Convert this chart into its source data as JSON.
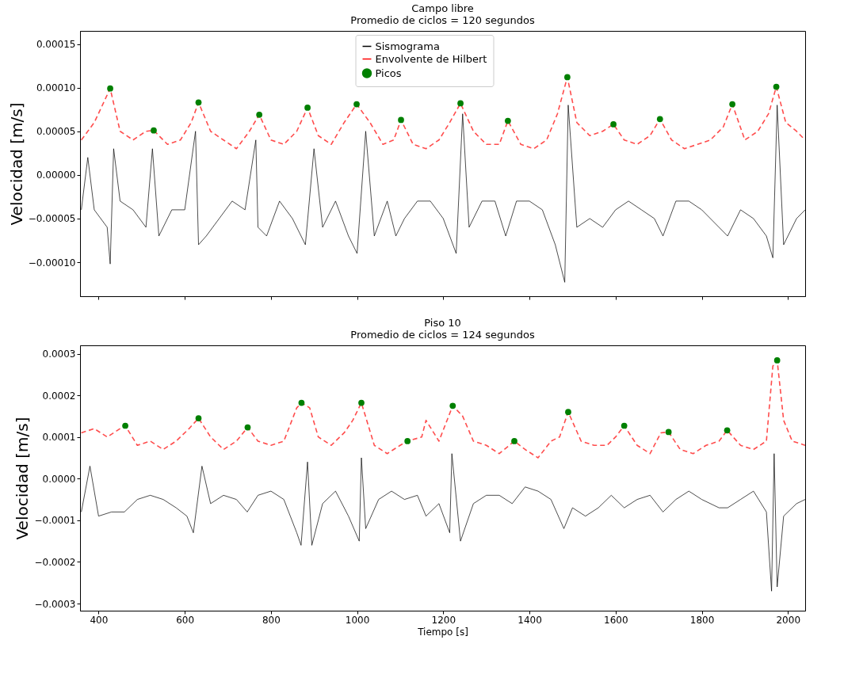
{
  "chart_data": [
    {
      "type": "line",
      "title": "Campo libre",
      "subtitle": "Promedio de ciclos = 120 segundos",
      "ylabel": "Velocidad [m/s]",
      "xlim": [
        357,
        2040
      ],
      "xticks": [
        400,
        600,
        800,
        1000,
        1200,
        1400,
        1600,
        1800,
        2000
      ],
      "ylim": [
        -0.000139,
        0.000165
      ],
      "yticks": [
        {
          "value": -0.0001,
          "label": "−0.00010"
        },
        {
          "value": -5e-05,
          "label": "−0.00005"
        },
        {
          "value": 0,
          "label": "0.00000"
        },
        {
          "value": 5e-05,
          "label": "0.00005"
        },
        {
          "value": 0.0001,
          "label": "0.00010"
        },
        {
          "value": 0.00015,
          "label": "0.00015"
        }
      ],
      "grid": false,
      "legend": "top",
      "tick_labels": "y",
      "series": [
        {
          "name": "Sismograma",
          "color": "#000000",
          "x": [
            360,
            375,
            390,
            420,
            427,
            435,
            450,
            480,
            510,
            525,
            540,
            570,
            600,
            625,
            632,
            650,
            680,
            710,
            740,
            765,
            770,
            790,
            820,
            850,
            880,
            900,
            920,
            950,
            980,
            1000,
            1020,
            1040,
            1070,
            1090,
            1110,
            1140,
            1170,
            1200,
            1230,
            1245,
            1260,
            1290,
            1320,
            1345,
            1370,
            1400,
            1430,
            1460,
            1482,
            1490,
            1510,
            1540,
            1570,
            1600,
            1630,
            1660,
            1690,
            1710,
            1740,
            1770,
            1800,
            1840,
            1860,
            1890,
            1920,
            1950,
            1965,
            1975,
            1990,
            2020,
            2040
          ],
          "values": [
            -4e-05,
            2e-05,
            -4e-05,
            -6e-05,
            -0.000102,
            3e-05,
            -3e-05,
            -4e-05,
            -6e-05,
            3e-05,
            -7e-05,
            -4e-05,
            -4e-05,
            5e-05,
            -8e-05,
            -7e-05,
            -5e-05,
            -3e-05,
            -4e-05,
            4e-05,
            -6e-05,
            -7e-05,
            -3e-05,
            -5e-05,
            -8e-05,
            3e-05,
            -6e-05,
            -3e-05,
            -7e-05,
            -9e-05,
            5e-05,
            -7e-05,
            -3e-05,
            -7e-05,
            -5e-05,
            -3e-05,
            -3e-05,
            -5e-05,
            -9e-05,
            7e-05,
            -6e-05,
            -3e-05,
            -3e-05,
            -7e-05,
            -3e-05,
            -3e-05,
            -4e-05,
            -8e-05,
            -0.000123,
            8e-05,
            -6e-05,
            -5e-05,
            -6e-05,
            -4e-05,
            -3e-05,
            -4e-05,
            -5e-05,
            -7e-05,
            -3e-05,
            -3e-05,
            -4e-05,
            -6e-05,
            -7e-05,
            -4e-05,
            -5e-05,
            -7e-05,
            -9.5e-05,
            8e-05,
            -8e-05,
            -5e-05,
            -4e-05
          ]
        },
        {
          "name": "Envolvente de Hilbert",
          "line_style": "dashed",
          "color": "#ff0000",
          "x": [
            360,
            390,
            427,
            450,
            480,
            510,
            528,
            560,
            590,
            615,
            632,
            660,
            690,
            720,
            750,
            773,
            800,
            830,
            860,
            885,
            910,
            940,
            970,
            999,
            1030,
            1060,
            1085,
            1102,
            1130,
            1160,
            1190,
            1215,
            1240,
            1270,
            1300,
            1330,
            1350,
            1380,
            1410,
            1440,
            1465,
            1488,
            1510,
            1540,
            1570,
            1595,
            1620,
            1650,
            1680,
            1703,
            1730,
            1760,
            1790,
            1820,
            1850,
            1871,
            1900,
            1930,
            1955,
            1973,
            1995,
            2020,
            2040
          ],
          "values": [
            4e-05,
            6e-05,
            9.9e-05,
            5e-05,
            4e-05,
            5e-05,
            5.1e-05,
            3.5e-05,
            4e-05,
            6e-05,
            8.3e-05,
            5e-05,
            4e-05,
            3e-05,
            5e-05,
            6.9e-05,
            4e-05,
            3.5e-05,
            5e-05,
            7.7e-05,
            4.5e-05,
            3.5e-05,
            6e-05,
            8.1e-05,
            6e-05,
            3.5e-05,
            4e-05,
            6.3e-05,
            3.5e-05,
            3e-05,
            4e-05,
            6e-05,
            8.2e-05,
            5e-05,
            3.5e-05,
            3.5e-05,
            6.2e-05,
            3.5e-05,
            3e-05,
            4e-05,
            7e-05,
            0.000112,
            6e-05,
            4.5e-05,
            5e-05,
            5.8e-05,
            4e-05,
            3.5e-05,
            4.5e-05,
            6.4e-05,
            4e-05,
            3e-05,
            3.5e-05,
            4e-05,
            5.5e-05,
            8.1e-05,
            4e-05,
            5e-05,
            7e-05,
            0.000101,
            6e-05,
            5e-05,
            4e-05
          ]
        },
        {
          "name": "Picos",
          "type": "scatter",
          "marker": "circle",
          "color": "#008000",
          "x": [
            427,
            528,
            632,
            773,
            885,
            999,
            1102,
            1240,
            1350,
            1488,
            1595,
            1703,
            1871,
            1973
          ],
          "values": [
            9.9e-05,
            5.1e-05,
            8.3e-05,
            6.9e-05,
            7.7e-05,
            8.1e-05,
            6.3e-05,
            8.2e-05,
            6.2e-05,
            0.000112,
            5.8e-05,
            6.4e-05,
            8.1e-05,
            0.000101
          ]
        }
      ]
    },
    {
      "type": "line",
      "title": "Piso 10",
      "subtitle": "Promedio de ciclos = 124 segundos",
      "xlabel": "Tiempo [s]",
      "ylabel": "Velocidad [m/s]",
      "xlim": [
        357,
        2040
      ],
      "xticks": [
        400,
        600,
        800,
        1000,
        1200,
        1400,
        1600,
        1800,
        2000
      ],
      "ylim": [
        -0.000317,
        0.00032
      ],
      "yticks": [
        {
          "value": -0.0003,
          "label": "−0.0003"
        },
        {
          "value": -0.0002,
          "label": "−0.0002"
        },
        {
          "value": -0.0001,
          "label": "−0.0001"
        },
        {
          "value": 0,
          "label": "0.0000"
        },
        {
          "value": 0.0001,
          "label": "0.0001"
        },
        {
          "value": 0.0002,
          "label": "0.0002"
        },
        {
          "value": 0.0003,
          "label": "0.0003"
        }
      ],
      "grid": false,
      "legend": "top left",
      "series": [
        {
          "name": "Sismograma",
          "color": "#000000",
          "x": [
            360,
            380,
            400,
            430,
            460,
            490,
            520,
            550,
            580,
            605,
            620,
            640,
            660,
            690,
            720,
            745,
            770,
            800,
            830,
            860,
            870,
            885,
            895,
            920,
            950,
            980,
            1005,
            1010,
            1020,
            1050,
            1080,
            1110,
            1140,
            1160,
            1190,
            1215,
            1220,
            1240,
            1270,
            1300,
            1330,
            1360,
            1390,
            1420,
            1450,
            1480,
            1500,
            1530,
            1560,
            1590,
            1620,
            1650,
            1680,
            1710,
            1740,
            1770,
            1800,
            1840,
            1860,
            1890,
            1920,
            1950,
            1962,
            1968,
            1975,
            1990,
            2020,
            2040
          ],
          "values": [
            -8e-05,
            3e-05,
            -9e-05,
            -8e-05,
            -8e-05,
            -5e-05,
            -4e-05,
            -5e-05,
            -7e-05,
            -9e-05,
            -0.00013,
            3e-05,
            -6e-05,
            -4e-05,
            -5e-05,
            -8e-05,
            -4e-05,
            -3e-05,
            -5e-05,
            -0.00013,
            -0.00016,
            4e-05,
            -0.00016,
            -6e-05,
            -3e-05,
            -9e-05,
            -0.00015,
            5e-05,
            -0.00012,
            -5e-05,
            -3e-05,
            -5e-05,
            -4e-05,
            -9e-05,
            -6e-05,
            -0.00013,
            6e-05,
            -0.00015,
            -6e-05,
            -4e-05,
            -4e-05,
            -6e-05,
            -2e-05,
            -3e-05,
            -5e-05,
            -0.00012,
            -7e-05,
            -9e-05,
            -7e-05,
            -4e-05,
            -7e-05,
            -5e-05,
            -4e-05,
            -8e-05,
            -5e-05,
            -3e-05,
            -5e-05,
            -7e-05,
            -7e-05,
            -5e-05,
            -3e-05,
            -8e-05,
            -0.00027,
            6e-05,
            -0.00026,
            -9e-05,
            -6e-05,
            -5e-05
          ]
        },
        {
          "name": "Envolvente de Hilbert",
          "line_style": "dashed",
          "color": "#ff0000",
          "x": [
            360,
            390,
            420,
            450,
            462,
            490,
            520,
            550,
            580,
            610,
            632,
            660,
            690,
            720,
            746,
            770,
            800,
            830,
            860,
            871,
            890,
            910,
            940,
            970,
            990,
            1010,
            1040,
            1070,
            1100,
            1117,
            1150,
            1160,
            1190,
            1222,
            1245,
            1270,
            1300,
            1330,
            1365,
            1390,
            1420,
            1450,
            1470,
            1490,
            1520,
            1550,
            1580,
            1600,
            1620,
            1650,
            1680,
            1705,
            1723,
            1750,
            1780,
            1810,
            1840,
            1859,
            1890,
            1920,
            1950,
            1965,
            1975,
            1990,
            2010,
            2040
          ],
          "values": [
            0.00011,
            0.00012,
            0.0001,
            0.00012,
            0.000127,
            8e-05,
            9e-05,
            7e-05,
            9e-05,
            0.00012,
            0.000145,
            0.0001,
            7e-05,
            9e-05,
            0.000123,
            9e-05,
            8e-05,
            9e-05,
            0.00017,
            0.000182,
            0.00017,
            0.0001,
            8e-05,
            0.00011,
            0.00014,
            0.000182,
            8e-05,
            6e-05,
            8e-05,
            9e-05,
            0.0001,
            0.00014,
            9e-05,
            0.000175,
            0.00015,
            9e-05,
            8e-05,
            6e-05,
            9e-05,
            7e-05,
            5e-05,
            9e-05,
            0.0001,
            0.00016,
            9e-05,
            8e-05,
            8e-05,
            0.0001,
            0.000127,
            8e-05,
            6e-05,
            0.00011,
            0.000112,
            7e-05,
            6e-05,
            8e-05,
            9e-05,
            0.000116,
            8e-05,
            7e-05,
            9e-05,
            0.00027,
            0.000284,
            0.00014,
            9e-05,
            8e-05
          ]
        },
        {
          "name": "Picos",
          "type": "scatter",
          "marker": "circle",
          "color": "#008000",
          "x": [
            462,
            632,
            746,
            871,
            1010,
            1117,
            1222,
            1365,
            1490,
            1620,
            1723,
            1859,
            1975
          ],
          "values": [
            0.000127,
            0.000145,
            0.000123,
            0.000182,
            0.000182,
            9e-05,
            0.000175,
            9e-05,
            0.00016,
            0.000127,
            0.000112,
            0.000116,
            0.000284
          ]
        }
      ]
    }
  ]
}
